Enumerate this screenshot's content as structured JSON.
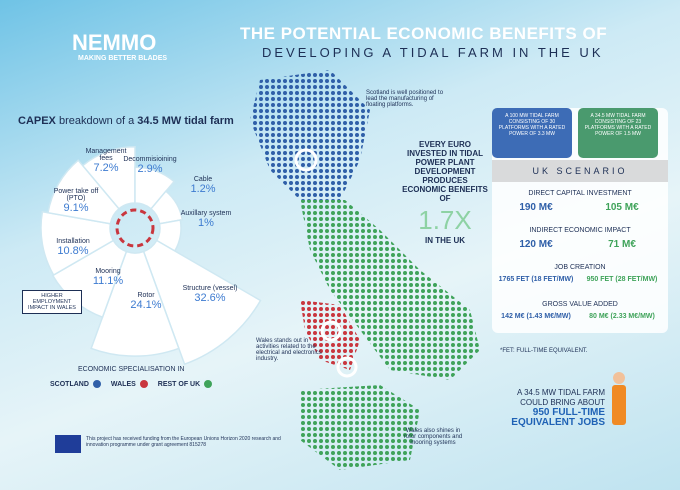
{
  "header": {
    "logo": "NEMMO",
    "tagline": "MAKING BETTER BLADES",
    "title": "THE POTENTIAL ECONOMIC BENEFITS OF",
    "subtitle": "DEVELOPING A TIDAL FARM IN THE UK"
  },
  "capex_title": {
    "bold1": "CAPEX",
    "plain": "breakdown of a",
    "bold2": "34.5 MW tidal farm"
  },
  "chart_data": {
    "type": "rose",
    "categories": [
      "Management fees",
      "Decommisioining",
      "Cable",
      "Auxillary system",
      "Structure (vessel)",
      "Rotor",
      "Mooring",
      "Installation",
      "Power take off (PTO)"
    ],
    "values": [
      7.2,
      2.9,
      1.2,
      1,
      32.6,
      24.1,
      11.1,
      10.8,
      9.1
    ],
    "value_labels": [
      "7.2%",
      "2.9%",
      "1.2%",
      "1%",
      "32.6%",
      "24.1%",
      "11.1%",
      "10.8%",
      "9.1%"
    ],
    "color": "#ffffff"
  },
  "wales_box": "HIGHER EMPLOYMENT IMPACT IN WALES",
  "annotations": [
    "Scotland is well positioned to lead the manufacturing of floating platforms.",
    "Wales stands out in activities related to the electrical and electronics industry.",
    "Wales also shines in rotor components and mooring systems"
  ],
  "euro": {
    "text": "EVERY EURO INVESTED IN TIDAL POWER PLANT DEVELOPMENT PRODUCES ECONOMIC BENEFITS OF",
    "value": "1.7X",
    "suffix": "IN THE UK"
  },
  "legend": {
    "title": "ECONOMIC SPECIALISATION IN",
    "items": [
      {
        "label": "SCOTLAND",
        "color": "#2f5fa8"
      },
      {
        "label": "WALES",
        "color": "#c9363e"
      },
      {
        "label": "REST OF UK",
        "color": "#3fa35a"
      }
    ]
  },
  "scenario": {
    "cards": [
      "A 100 MW TIDAL FARM CONSISTING OF 30 PLATFORMS WITH A RATED POWER OF 3.3 MW",
      "A 34.5 MW TIDAL FARM CONSISTING OF 23 PLATFORMS WITH A RATED POWER OF 1.5 MW"
    ],
    "title": "UK SCENARIO",
    "rows": [
      {
        "label": "DIRECT CAPITAL INVESTMENT",
        "a": "190 M€",
        "b": "105 M€"
      },
      {
        "label": "INDIRECT ECONOMIC IMPACT",
        "a": "120 M€",
        "b": "71 M€"
      },
      {
        "label": "JOB CREATION",
        "a": "1765 FET (18 FET/MW)",
        "b": "950 FET (28 FET/MW)"
      },
      {
        "label": "GROSS VALUE ADDED",
        "a": "142 M€ (1.43 M€/MW)",
        "b": "80 M€ (2.33 M€/MW)"
      }
    ],
    "note": "*FET: FULL-TIME EQUIVALENT."
  },
  "jobs": {
    "line1": "A 34.5 MW TIDAL FARM",
    "line2": "COULD BRING ABOUT",
    "line3": "950 FULL-TIME",
    "line4": "EQUIVALENT JOBS"
  },
  "funding": "This project has received funding from the European Unions Horizon 2020 research and innovation programme under grant agreement 815278"
}
